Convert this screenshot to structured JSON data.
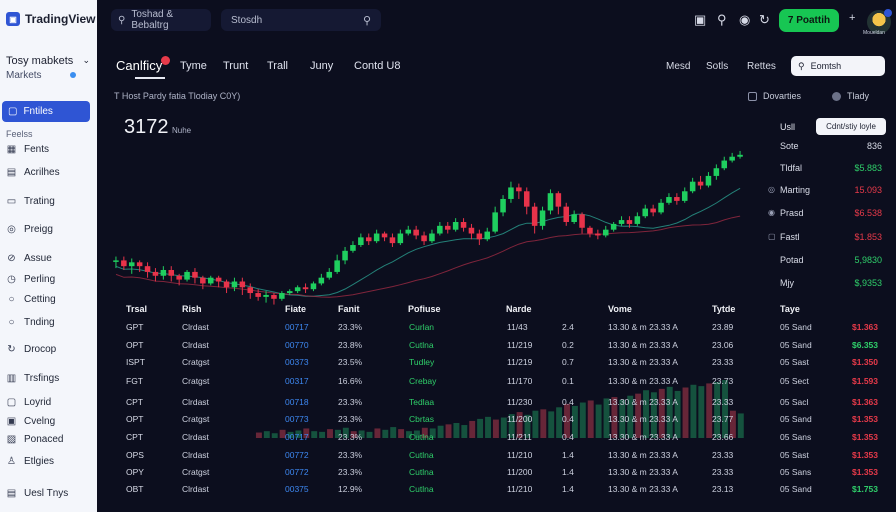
{
  "app": {
    "name": "TradingView"
  },
  "colors": {
    "accent": "#2f55d4",
    "up": "#17c653",
    "down": "#e73a4a",
    "bg": "#0c0e1e"
  },
  "sidebar": {
    "today_title": "Tosy mabkets",
    "today_sub": "Markets",
    "active_label": "Fntiles",
    "section_label": "Feelss",
    "items": [
      {
        "label": "Fents",
        "icon": "grid-icon"
      },
      {
        "label": "Acrilhes",
        "icon": "archive-icon"
      },
      {
        "label": "Trating",
        "icon": "document-icon"
      },
      {
        "label": "Preigg",
        "icon": "eye-icon"
      },
      {
        "label": "Assue",
        "icon": "link-icon"
      },
      {
        "label": "Perling",
        "icon": "clock-icon"
      },
      {
        "label": "Cetting",
        "icon": "circle-icon"
      },
      {
        "label": "Tnding",
        "icon": "circle-icon"
      },
      {
        "label": "Drocop",
        "icon": "refresh-icon"
      },
      {
        "label": "Trsfings",
        "icon": "chart-icon"
      },
      {
        "label": "Loyrid",
        "icon": "box-icon"
      },
      {
        "label": "Cvelng",
        "icon": "layers-icon"
      },
      {
        "label": "Ponaced",
        "icon": "user-icon"
      },
      {
        "label": "Etlgies",
        "icon": "bell-icon"
      },
      {
        "label": "Uesl Tnys",
        "icon": "list-icon"
      }
    ]
  },
  "topbar": {
    "breadcrumb": "Toshad & Bebaltrg",
    "search_placeholder": "Stosdh",
    "cta_label": "7 Poattih",
    "avatar_caption": "Moueldan"
  },
  "tabs": [
    "Canlficy",
    "Tyme",
    "Trunt",
    "Trall",
    "Juny",
    "Contd U8"
  ],
  "right_tabs": [
    "Mesd",
    "Sotls",
    "Rettes"
  ],
  "right_search": "Eomtsh",
  "subtitle": "T Host Pardy fatia Tlodiay C0Y)",
  "tools": {
    "left": "Dovarties",
    "right": "Tlady"
  },
  "price": {
    "value": "3172",
    "unit": "Nuhe"
  },
  "chart_data": {
    "type": "candlestick",
    "candles": [
      [
        30,
        30,
        26,
        32
      ],
      [
        30,
        27,
        25,
        32
      ],
      [
        27,
        29,
        23,
        31
      ],
      [
        29,
        27,
        24,
        30
      ],
      [
        27,
        24,
        21,
        29
      ],
      [
        24,
        22,
        19,
        26
      ],
      [
        22,
        25,
        20,
        27
      ],
      [
        25,
        22,
        19,
        27
      ],
      [
        22,
        20,
        17,
        23
      ],
      [
        20,
        24,
        19,
        25
      ],
      [
        24,
        21,
        18,
        26
      ],
      [
        21,
        18,
        15,
        22
      ],
      [
        18,
        21,
        17,
        22
      ],
      [
        21,
        19,
        16,
        22
      ],
      [
        19,
        16,
        13,
        20
      ],
      [
        16,
        19,
        14,
        21
      ],
      [
        19,
        16,
        12,
        21
      ],
      [
        16,
        13,
        10,
        18
      ],
      [
        13,
        11,
        9,
        15
      ],
      [
        11,
        12,
        8,
        14
      ],
      [
        12,
        10,
        7,
        13
      ],
      [
        10,
        13,
        9,
        14
      ],
      [
        13,
        14,
        12,
        15
      ],
      [
        14,
        16,
        13,
        17
      ],
      [
        16,
        15,
        13,
        18
      ],
      [
        15,
        18,
        14,
        19
      ],
      [
        18,
        21,
        17,
        23
      ],
      [
        21,
        24,
        20,
        26
      ],
      [
        24,
        30,
        23,
        33
      ],
      [
        30,
        35,
        28,
        37
      ],
      [
        35,
        38,
        34,
        40
      ],
      [
        38,
        42,
        37,
        44
      ],
      [
        42,
        40,
        38,
        44
      ],
      [
        40,
        44,
        39,
        46
      ],
      [
        44,
        42,
        40,
        45
      ],
      [
        42,
        39,
        37,
        44
      ],
      [
        39,
        44,
        38,
        46
      ],
      [
        44,
        46,
        43,
        48
      ],
      [
        46,
        43,
        41,
        48
      ],
      [
        43,
        40,
        38,
        45
      ],
      [
        40,
        44,
        39,
        46
      ],
      [
        44,
        48,
        43,
        50
      ],
      [
        48,
        46,
        44,
        50
      ],
      [
        46,
        50,
        45,
        52
      ],
      [
        50,
        47,
        45,
        52
      ],
      [
        47,
        44,
        41,
        49
      ],
      [
        44,
        41,
        38,
        46
      ],
      [
        41,
        45,
        40,
        47
      ],
      [
        45,
        55,
        44,
        58
      ],
      [
        55,
        62,
        53,
        64
      ],
      [
        62,
        68,
        60,
        71
      ],
      [
        68,
        66,
        62,
        70
      ],
      [
        66,
        58,
        54,
        68
      ],
      [
        58,
        48,
        44,
        60
      ],
      [
        48,
        56,
        46,
        58
      ],
      [
        56,
        65,
        54,
        67
      ],
      [
        65,
        58,
        54,
        66
      ],
      [
        58,
        50,
        48,
        60
      ],
      [
        50,
        54,
        49,
        56
      ],
      [
        54,
        47,
        44,
        55
      ],
      [
        47,
        44,
        42,
        48
      ],
      [
        44,
        43,
        41,
        46
      ],
      [
        43,
        46,
        42,
        48
      ],
      [
        46,
        49,
        45,
        50
      ],
      [
        49,
        51,
        48,
        53
      ],
      [
        51,
        49,
        47,
        53
      ],
      [
        49,
        53,
        48,
        55
      ],
      [
        53,
        57,
        52,
        59
      ],
      [
        57,
        55,
        53,
        59
      ],
      [
        55,
        60,
        54,
        62
      ],
      [
        60,
        63,
        59,
        65
      ],
      [
        63,
        61,
        59,
        65
      ],
      [
        61,
        66,
        60,
        68
      ],
      [
        66,
        71,
        65,
        73
      ],
      [
        71,
        69,
        67,
        74
      ],
      [
        69,
        74,
        68,
        76
      ],
      [
        74,
        78,
        72,
        80
      ],
      [
        78,
        82,
        77,
        84
      ],
      [
        82,
        84,
        81,
        86
      ],
      [
        84,
        85,
        83,
        87
      ]
    ],
    "volumes": [
      8,
      10,
      7,
      12,
      9,
      11,
      14,
      10,
      9,
      13,
      12,
      15,
      10,
      11,
      9,
      14,
      12,
      16,
      13,
      10,
      11,
      15,
      14,
      18,
      20,
      22,
      19,
      25,
      28,
      31,
      27,
      30,
      35,
      38,
      34,
      40,
      42,
      39,
      45,
      50,
      47,
      52,
      55,
      49,
      58,
      60,
      56,
      62,
      65,
      70,
      67,
      72,
      75,
      69,
      74,
      78,
      76,
      80,
      82,
      85,
      40,
      36,
      32,
      30,
      28,
      26,
      24,
      22,
      20,
      18,
      16,
      14,
      12,
      10,
      8,
      6,
      5,
      4,
      3,
      2
    ]
  },
  "stats": {
    "header": "Usll",
    "pill": "Cdnt/stiy loyle",
    "items": [
      {
        "label": "Sote",
        "value": "836",
        "color": "#dadde9",
        "icon": ""
      },
      {
        "label": "Tldfal",
        "value": "$5.883",
        "color": "#2fcf6a",
        "icon": ""
      },
      {
        "label": "Marting",
        "value": "15.093",
        "color": "#e73a4a",
        "icon": "◎"
      },
      {
        "label": "Prasd",
        "value": "$6.538",
        "color": "#e73a4a",
        "icon": "◉"
      },
      {
        "label": "Fastl",
        "value": "$1.853",
        "color": "#e73a4a",
        "icon": "▢"
      },
      {
        "label": "Potad",
        "value": "5,9830",
        "color": "#2fcf6a",
        "icon": ""
      },
      {
        "label": "Mjy",
        "value": "$,9353",
        "color": "#2fcf6a",
        "icon": ""
      }
    ]
  },
  "table": {
    "headers": [
      "Trsal",
      "Rish",
      "Fiate",
      "Fanit",
      "Pofiuse",
      "Narde",
      "Vome",
      "Tytde",
      "Taye"
    ],
    "rows": [
      {
        "asset": "GPT",
        "name": "Clrdast",
        "price": "00717",
        "pct": "23.3%",
        "perf": "Curlan",
        "date": "11/43",
        "num": "2.4",
        "vol": "13.30 & m 23.33 A",
        "time": "23.89",
        "type": "05 Sand",
        "chg": "$1.363",
        "chg_color": "#e73a4a"
      },
      {
        "asset": "OPT",
        "name": "Clrdast",
        "price": "00770",
        "pct": "23.8%",
        "perf": "Cutlna",
        "date": "11/219",
        "num": "0.2",
        "vol": "13.30 & m 23.33 A",
        "time": "23.06",
        "type": "05 Sand",
        "chg": "$6.353",
        "chg_color": "#2fcf6a"
      },
      {
        "asset": "ISPT",
        "name": "Cratgst",
        "price": "00373",
        "pct": "23.5%",
        "perf": "Tudley",
        "date": "11/219",
        "num": "0.7",
        "vol": "13.30 & m 23.33 A",
        "time": "23.33",
        "type": "05 Sast",
        "chg": "$1.350",
        "chg_color": "#e73a4a"
      },
      {
        "asset": "FGT",
        "name": "Cratgst",
        "price": "00317",
        "pct": "16.6%",
        "perf": "Crebay",
        "date": "11/170",
        "num": "0.1",
        "vol": "13.30 & m 23.33 A",
        "time": "23.73",
        "type": "05 Sect",
        "chg": "$1.593",
        "chg_color": "#e73a4a"
      },
      {
        "asset": "CPT",
        "name": "Clrdast",
        "price": "00718",
        "pct": "23.3%",
        "perf": "Tedlaa",
        "date": "11/230",
        "num": "0.4",
        "vol": "13.30 & m 23.33 A",
        "time": "23.33",
        "type": "05 Sacl",
        "chg": "$1.363",
        "chg_color": "#e73a4a"
      },
      {
        "asset": "OPT",
        "name": "Cratgst",
        "price": "00773",
        "pct": "23.3%",
        "perf": "Cbrtas",
        "date": "11/200",
        "num": "0.4",
        "vol": "13.30 & m 23.33 A",
        "time": "23.77",
        "type": "05 Sand",
        "chg": "$1.353",
        "chg_color": "#e73a4a"
      },
      {
        "asset": "CPT",
        "name": "Clrdast",
        "price": "00717",
        "pct": "23.3%",
        "perf": "Cutlna",
        "date": "11/211",
        "num": "0.4",
        "vol": "13.30 & m 23.33 A",
        "time": "23.66",
        "type": "05 Sans",
        "chg": "$1.353",
        "chg_color": "#e73a4a"
      },
      {
        "asset": "OPS",
        "name": "Clrdast",
        "price": "00772",
        "pct": "23.3%",
        "perf": "Cutlna",
        "date": "11/210",
        "num": "1.4",
        "vol": "13.30 & m 23.33 A",
        "time": "23.33",
        "type": "05 Sast",
        "chg": "$1.353",
        "chg_color": "#e73a4a"
      },
      {
        "asset": "OPY",
        "name": "Cratgst",
        "price": "00772",
        "pct": "23.3%",
        "perf": "Cutlna",
        "date": "11/200",
        "num": "1.4",
        "vol": "13.30 & m 23.33 A",
        "time": "23.33",
        "type": "05 Sans",
        "chg": "$1.353",
        "chg_color": "#e73a4a"
      },
      {
        "asset": "OBT",
        "name": "Clrdast",
        "price": "00375",
        "pct": "12.9%",
        "perf": "Cutlna",
        "date": "11/210",
        "num": "1.4",
        "vol": "13.30 & m 23.33 A",
        "time": "23.13",
        "type": "05 Sand",
        "chg": "$1.753",
        "chg_color": "#2fcf6a"
      }
    ]
  }
}
